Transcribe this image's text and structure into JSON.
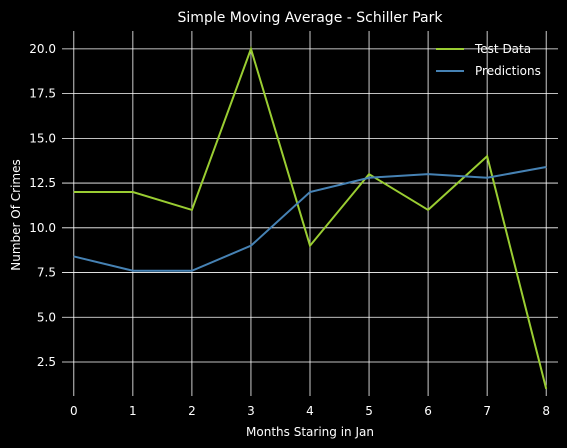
{
  "chart_data": {
    "type": "line",
    "title": "Simple Moving Average - Schiller Park",
    "xlabel": "Months Staring in Jan",
    "ylabel": "Number Of Crimes",
    "x": [
      0,
      1,
      2,
      3,
      4,
      5,
      6,
      7,
      8
    ],
    "xlim": [
      -0.2,
      8.2
    ],
    "ylim": [
      0.6,
      21.0
    ],
    "xticks": [
      "0",
      "1",
      "2",
      "3",
      "4",
      "5",
      "6",
      "7",
      "8"
    ],
    "yticks": [
      "2.5",
      "5.0",
      "7.5",
      "10.0",
      "12.5",
      "15.0",
      "17.5",
      "20.0"
    ],
    "grid": true,
    "legend_position": "top-right",
    "background": "#000000",
    "series": [
      {
        "name": "Test Data",
        "color": "#9acd32",
        "values": [
          12,
          12,
          11,
          20,
          9,
          13,
          11,
          14,
          1
        ]
      },
      {
        "name": "Predictions",
        "color": "#4682b4",
        "values": [
          8.4,
          7.6,
          7.6,
          9.0,
          12.0,
          12.8,
          13.0,
          12.8,
          13.4
        ]
      }
    ]
  }
}
